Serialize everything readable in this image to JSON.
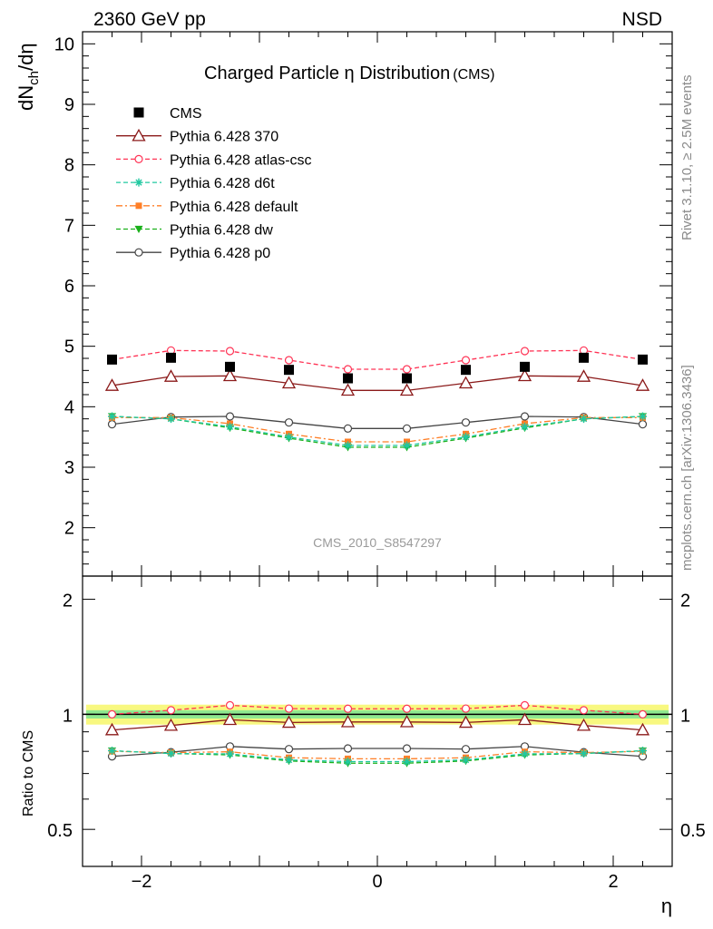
{
  "header": {
    "left": "2360 GeV pp",
    "right": "NSD"
  },
  "side_labels": {
    "rivet": "Rivet 3.1.10, ≥ 2.5M events",
    "mcplots": "mcplots.cern.ch [arXiv:1306.3436]"
  },
  "watermark": "CMS_2010_S8547297",
  "chart_data": [
    {
      "type": "line",
      "panel": "main",
      "title": "Charged Particle η Distribution",
      "title_suffix": "(CMS)",
      "ylabel": "dN_ch/dη",
      "ylabel_parts": {
        "main": "dN",
        "sub": "ch",
        "rest": "/dη"
      },
      "xlim": [
        -2.5,
        2.5
      ],
      "ylim": [
        1.2,
        10.2
      ],
      "yticks": [
        2,
        3,
        4,
        5,
        6,
        7,
        8,
        9,
        10
      ],
      "ytick_labels": [
        "2",
        "3",
        "4",
        "5",
        "6",
        "7",
        "8",
        "9",
        "10"
      ],
      "legend_position": "top-left",
      "x": [
        -2.25,
        -1.75,
        -1.25,
        -0.75,
        -0.25,
        0.25,
        0.75,
        1.25,
        1.75,
        2.25
      ],
      "series": [
        {
          "name": "CMS",
          "color": "#000000",
          "marker": "square-filled",
          "line": "none",
          "values": [
            4.78,
            4.81,
            4.66,
            4.61,
            4.47,
            4.47,
            4.61,
            4.66,
            4.81,
            4.78
          ]
        },
        {
          "name": "Pythia 6.428 370",
          "color": "#8b1a1a",
          "marker": "triangle-open",
          "line": "solid",
          "values": [
            4.35,
            4.5,
            4.51,
            4.39,
            4.27,
            4.27,
            4.39,
            4.51,
            4.5,
            4.35
          ]
        },
        {
          "name": "Pythia 6.428 atlas-csc",
          "color": "#ff3355",
          "marker": "circle-open",
          "line": "dashed",
          "values": [
            4.78,
            4.93,
            4.92,
            4.77,
            4.62,
            4.62,
            4.77,
            4.92,
            4.93,
            4.78
          ]
        },
        {
          "name": "Pythia 6.428 d6t",
          "color": "#20c8a0",
          "marker": "star",
          "line": "dashed",
          "values": [
            3.84,
            3.8,
            3.67,
            3.5,
            3.36,
            3.36,
            3.5,
            3.67,
            3.8,
            3.84
          ]
        },
        {
          "name": "Pythia 6.428 default",
          "color": "#ff7f27",
          "marker": "square-small",
          "line": "dashdot",
          "values": [
            3.82,
            3.82,
            3.72,
            3.55,
            3.42,
            3.42,
            3.55,
            3.72,
            3.82,
            3.82
          ]
        },
        {
          "name": "Pythia 6.428 dw",
          "color": "#1ab01a",
          "marker": "triangle-down-filled",
          "line": "dashed",
          "values": [
            3.84,
            3.8,
            3.65,
            3.48,
            3.33,
            3.33,
            3.48,
            3.65,
            3.8,
            3.84
          ]
        },
        {
          "name": "Pythia 6.428 p0",
          "color": "#444444",
          "marker": "circle-open",
          "line": "solid",
          "values": [
            3.71,
            3.83,
            3.84,
            3.74,
            3.64,
            3.64,
            3.74,
            3.84,
            3.83,
            3.71
          ]
        }
      ]
    },
    {
      "type": "line",
      "panel": "ratio",
      "ylabel": "Ratio to CMS",
      "xlabel": "η",
      "xlim": [
        -2.5,
        2.5
      ],
      "ylim": [
        0.4,
        2.3
      ],
      "ylog": true,
      "yticks": [
        0.5,
        1,
        2
      ],
      "ytick_labels": [
        "0.5",
        "1",
        "2"
      ],
      "xticks": [
        -2,
        0,
        2
      ],
      "xtick_labels": [
        "−2",
        "0",
        "2"
      ],
      "band_inner": [
        0.975,
        1.025
      ],
      "band_outer": [
        0.94,
        1.06
      ],
      "band_inner_color": "#8fe88f",
      "band_outer_color": "#f8f880",
      "x": [
        -2.25,
        -1.75,
        -1.25,
        -0.75,
        -0.25,
        0.25,
        0.75,
        1.25,
        1.75,
        2.25
      ],
      "series": [
        {
          "name": "Pythia 6.428 370",
          "color": "#8b1a1a",
          "marker": "triangle-open",
          "line": "solid",
          "values": [
            0.91,
            0.935,
            0.968,
            0.952,
            0.955,
            0.955,
            0.952,
            0.968,
            0.935,
            0.91
          ]
        },
        {
          "name": "Pythia 6.428 atlas-csc",
          "color": "#ff3355",
          "marker": "circle-open",
          "line": "dashed",
          "values": [
            1.0,
            1.025,
            1.056,
            1.035,
            1.034,
            1.034,
            1.035,
            1.056,
            1.025,
            1.0
          ]
        },
        {
          "name": "Pythia 6.428 d6t",
          "color": "#20c8a0",
          "marker": "star",
          "line": "dashed",
          "values": [
            0.803,
            0.79,
            0.788,
            0.76,
            0.752,
            0.752,
            0.76,
            0.788,
            0.79,
            0.803
          ]
        },
        {
          "name": "Pythia 6.428 default",
          "color": "#ff7f27",
          "marker": "square-small",
          "line": "dashdot",
          "values": [
            0.8,
            0.794,
            0.798,
            0.77,
            0.765,
            0.765,
            0.77,
            0.798,
            0.794,
            0.8
          ]
        },
        {
          "name": "Pythia 6.428 dw",
          "color": "#1ab01a",
          "marker": "triangle-down-filled",
          "line": "dashed",
          "values": [
            0.803,
            0.79,
            0.783,
            0.755,
            0.745,
            0.745,
            0.755,
            0.783,
            0.79,
            0.803
          ]
        },
        {
          "name": "Pythia 6.428 p0",
          "color": "#444444",
          "marker": "circle-open",
          "line": "solid",
          "values": [
            0.776,
            0.796,
            0.824,
            0.811,
            0.814,
            0.814,
            0.811,
            0.824,
            0.796,
            0.776
          ]
        }
      ]
    }
  ]
}
